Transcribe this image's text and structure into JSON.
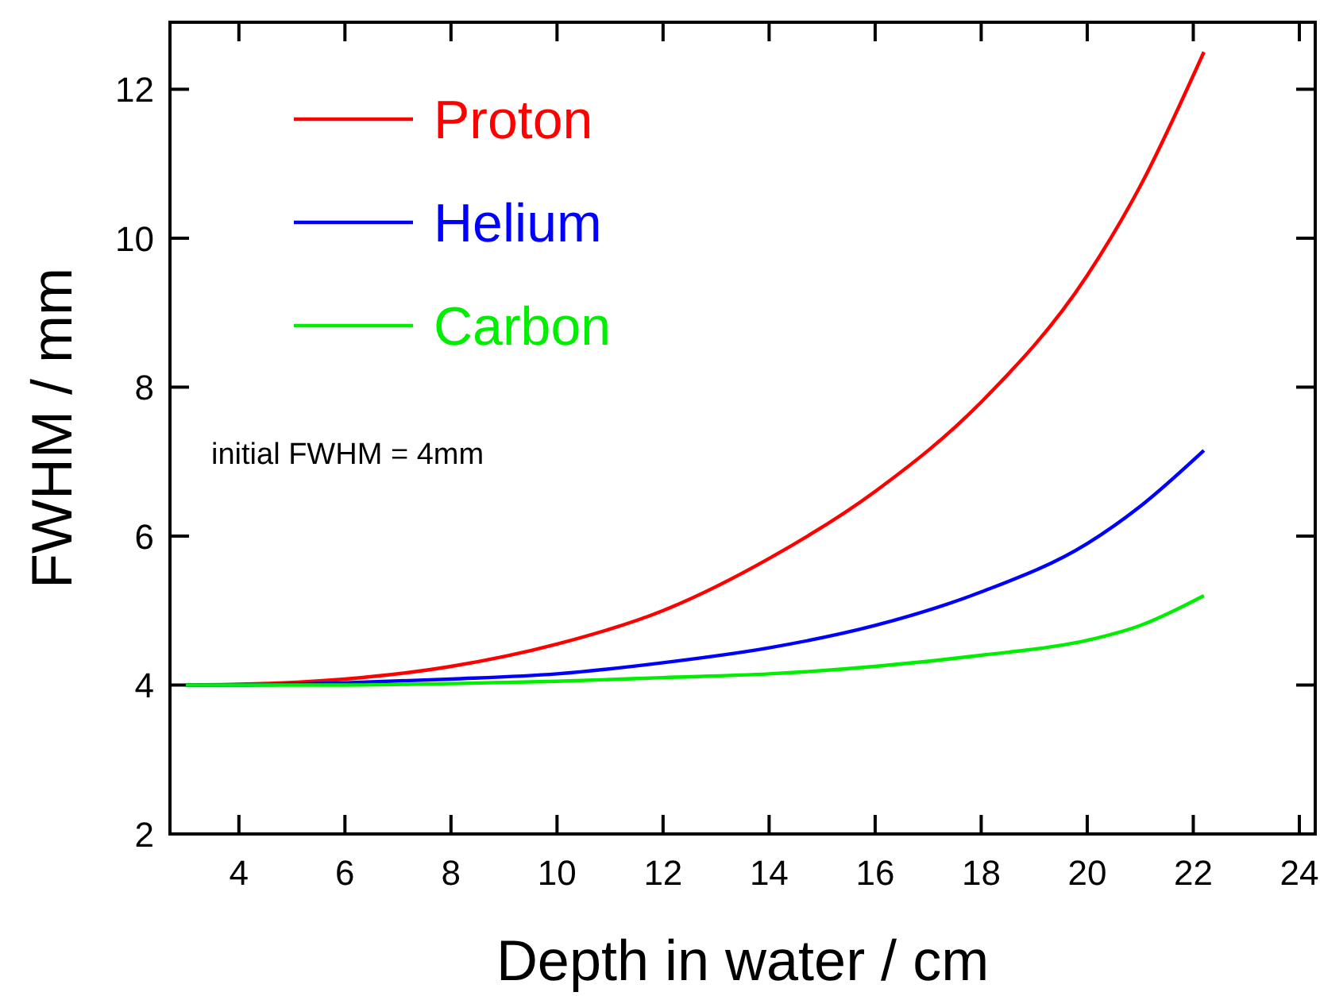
{
  "chart_data": {
    "type": "line",
    "xlabel": "Depth in water / cm",
    "ylabel": "FWHM / mm",
    "x": [
      3,
      4,
      6,
      8,
      10,
      12,
      14,
      16,
      18,
      20,
      21,
      22.2
    ],
    "series": [
      {
        "name": "Proton",
        "color": "#ff0000",
        "values": [
          4.0,
          4.01,
          4.08,
          4.25,
          4.55,
          5.0,
          5.7,
          6.6,
          7.8,
          9.5,
          10.7,
          12.5
        ]
      },
      {
        "name": "Helium",
        "color": "#0000ff",
        "values": [
          4.0,
          4.0,
          4.03,
          4.08,
          4.15,
          4.3,
          4.5,
          4.8,
          5.25,
          5.9,
          6.4,
          7.15
        ]
      },
      {
        "name": "Carbon",
        "color": "#00ee00",
        "values": [
          4.0,
          4.0,
          4.0,
          4.02,
          4.05,
          4.1,
          4.15,
          4.25,
          4.4,
          4.6,
          4.8,
          5.2
        ]
      }
    ],
    "annotations": [
      "initial FWHM = 4mm"
    ],
    "xlim": [
      2.7,
      24.3
    ],
    "ylim": [
      2,
      12.9
    ],
    "xticks": [
      4,
      6,
      8,
      10,
      12,
      14,
      16,
      18,
      20,
      22,
      24
    ],
    "yticks": [
      2,
      4,
      6,
      8,
      10,
      12
    ],
    "legend": "top left",
    "grid": false,
    "line_style": "solid"
  }
}
